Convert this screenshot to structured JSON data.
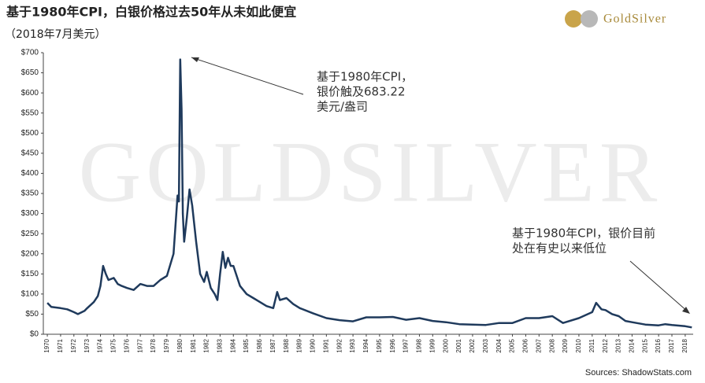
{
  "title": "基于1980年CPI，白银价格过去50年从未如此便宜",
  "subtitle": "（2018年7月美元）",
  "logo": "GoldSilver",
  "source": "Sources: ShadowStats.com",
  "chart_data": {
    "type": "line",
    "watermark": "GoldSilver",
    "annotations": [
      {
        "lines": [
          "基于1980年CPI，",
          "银价触及683.22",
          "美元/盎司"
        ]
      },
      {
        "lines": [
          "基于1980年CPI，银价目前",
          "处在有史以来低位"
        ]
      }
    ],
    "x": [
      1970.0,
      1970.3,
      1971.0,
      1971.5,
      1972.0,
      1972.3,
      1972.8,
      1973.0,
      1973.5,
      1973.8,
      1974.0,
      1974.2,
      1974.4,
      1974.6,
      1975.0,
      1975.3,
      1975.6,
      1976.0,
      1976.5,
      1977.0,
      1977.5,
      1978.0,
      1978.5,
      1979.0,
      1979.5,
      1979.8,
      1979.9,
      1980.0,
      1980.1,
      1980.2,
      1980.3,
      1980.5,
      1980.7,
      1980.9,
      1981.2,
      1981.5,
      1981.8,
      1982.0,
      1982.3,
      1982.6,
      1982.8,
      1983.0,
      1983.2,
      1983.4,
      1983.6,
      1983.8,
      1984.0,
      1984.5,
      1985.0,
      1985.5,
      1986.0,
      1986.5,
      1987.0,
      1987.3,
      1987.5,
      1988.0,
      1988.5,
      1989.0,
      1990.0,
      1991.0,
      1992.0,
      1993.0,
      1994.0,
      1995.0,
      1996.0,
      1997.0,
      1998.0,
      1999.0,
      2000.0,
      2001.0,
      2002.0,
      2003.0,
      2004.0,
      2005.0,
      2006.0,
      2007.0,
      2008.0,
      2008.8,
      2009.0,
      2010.0,
      2011.0,
      2011.3,
      2011.7,
      2012.0,
      2012.5,
      2013.0,
      2013.5,
      2014.0,
      2015.0,
      2016.0,
      2016.5,
      2017.0,
      2018.0,
      2018.5
    ],
    "series": [
      {
        "color": "#1f3a5c",
        "values": [
          78,
          68,
          65,
          62,
          55,
          50,
          58,
          65,
          80,
          95,
          120,
          170,
          150,
          135,
          140,
          125,
          120,
          115,
          110,
          125,
          120,
          120,
          135,
          145,
          200,
          345,
          330,
          683.22,
          560,
          300,
          230,
          290,
          360,
          320,
          230,
          150,
          130,
          155,
          115,
          100,
          85,
          150,
          205,
          165,
          190,
          170,
          170,
          120,
          100,
          90,
          80,
          70,
          65,
          105,
          85,
          90,
          75,
          65,
          52,
          40,
          35,
          32,
          42,
          42,
          43,
          36,
          40,
          33,
          30,
          25,
          24,
          23,
          28,
          28,
          40,
          40,
          45,
          28,
          30,
          40,
          55,
          78,
          62,
          60,
          50,
          45,
          33,
          30,
          24,
          22,
          25,
          23,
          20,
          17
        ]
      }
    ],
    "xlim": [
      1969.7,
      2018.6
    ],
    "xticks": [
      1970,
      1971,
      1972,
      1973,
      1974,
      1975,
      1976,
      1977,
      1978,
      1979,
      1980,
      1981,
      1982,
      1983,
      1984,
      1985,
      1986,
      1987,
      1988,
      1989,
      1990,
      1991,
      1992,
      1993,
      1994,
      1995,
      1996,
      1997,
      1998,
      1999,
      2000,
      2001,
      2002,
      2003,
      2004,
      2005,
      2006,
      2007,
      2008,
      2009,
      2010,
      2011,
      2012,
      2013,
      2014,
      2015,
      2016,
      2017,
      2018
    ],
    "ylim": [
      0,
      700
    ],
    "yticks": [
      {
        "value": 0,
        "label": "$0"
      },
      {
        "value": 50,
        "label": "$50"
      },
      {
        "value": 100,
        "label": "$100"
      },
      {
        "value": 150,
        "label": "$150"
      },
      {
        "value": 200,
        "label": "$200"
      },
      {
        "value": 250,
        "label": "$250"
      },
      {
        "value": 300,
        "label": "$300"
      },
      {
        "value": 350,
        "label": "$350"
      },
      {
        "value": 400,
        "label": "$400"
      },
      {
        "value": 450,
        "label": "$450"
      },
      {
        "value": 500,
        "label": "$500"
      },
      {
        "value": 550,
        "label": "$550"
      },
      {
        "value": 600,
        "label": "$600"
      },
      {
        "value": 650,
        "label": "$650"
      },
      {
        "value": 700,
        "label": "$700"
      }
    ]
  }
}
